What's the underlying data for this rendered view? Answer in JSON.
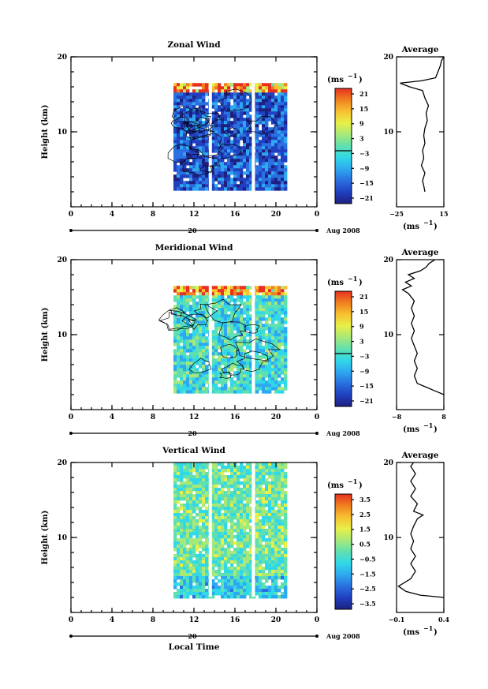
{
  "colors": {
    "scale": [
      "#1e2080",
      "#2040c0",
      "#2a70e0",
      "#2ea8f0",
      "#30d8e8",
      "#60e0b0",
      "#a8e878",
      "#e8f048",
      "#f8c030",
      "#f08020",
      "#e83020"
    ],
    "contour": "#000000",
    "axis": "#000000"
  },
  "x_axis": {
    "ticks": [
      "0",
      "4",
      "8",
      "12",
      "16",
      "20",
      "0"
    ],
    "date_label": "20",
    "month_label": "Aug 2008",
    "xlabel": "Local Time"
  },
  "chart_data": [
    {
      "type": "heatmap",
      "title": "Zonal Wind",
      "ylabel": "Height (km)",
      "xlim": [
        0,
        24
      ],
      "ylim": [
        2,
        20
      ],
      "y_ticks": [
        "10",
        "20"
      ],
      "data_start_hour": 10,
      "data_end_hour": 21,
      "gaps_hours": [
        13.6,
        17.8
      ],
      "dominant_value": -15,
      "top_value": 21,
      "colorbar": {
        "unit": "(ms",
        "unit_exp": "−1",
        "unit_close": ")",
        "ticks": [
          "21",
          "15",
          "9",
          "3",
          "−3",
          "−9",
          "−15",
          "−21"
        ],
        "zero_line": true
      },
      "profile": {
        "title": "Average",
        "xlim_labels": [
          "−25",
          "15"
        ],
        "xlim": [
          -25,
          15
        ],
        "unit": "(ms",
        "unit_exp": "−1",
        "unit_close": ")",
        "y_ticks": [
          "10",
          "20"
        ],
        "points": [
          [
            -1,
            2
          ],
          [
            -2,
            2.8
          ],
          [
            -3,
            3.5
          ],
          [
            -1,
            4.5
          ],
          [
            -4,
            5.5
          ],
          [
            -2,
            6.5
          ],
          [
            -3,
            7.5
          ],
          [
            -1,
            8.5
          ],
          [
            -2,
            9.5
          ],
          [
            -1,
            10.5
          ],
          [
            1,
            11.5
          ],
          [
            0,
            12.5
          ],
          [
            2,
            13.5
          ],
          [
            -1,
            14.5
          ],
          [
            -3,
            15.5
          ],
          [
            -14,
            16
          ],
          [
            -22,
            16.5
          ],
          [
            -4,
            16.8
          ],
          [
            8,
            17.2
          ],
          [
            10,
            18
          ],
          [
            12,
            18.8
          ],
          [
            13,
            19.5
          ],
          [
            15,
            20
          ]
        ]
      }
    },
    {
      "type": "heatmap",
      "title": "Meridional Wind",
      "ylabel": "Height (km)",
      "xlim": [
        0,
        24
      ],
      "ylim": [
        2,
        20
      ],
      "y_ticks": [
        "10",
        "20"
      ],
      "data_start_hour": 10,
      "data_end_hour": 21,
      "gaps_hours": [
        13.6,
        17.8
      ],
      "dominant_value": -3,
      "top_value": 21,
      "colorbar": {
        "unit": "(ms",
        "unit_exp": "−1",
        "unit_close": ")",
        "ticks": [
          "21",
          "15",
          "9",
          "3",
          "−3",
          "−9",
          "−15",
          "−21"
        ],
        "zero_line": true
      },
      "profile": {
        "title": "Average",
        "xlim_labels": [
          "−8",
          "8"
        ],
        "xlim": [
          -8,
          8
        ],
        "unit": "(ms",
        "unit_exp": "−1",
        "unit_close": ")",
        "y_ticks": [
          "10",
          "20"
        ],
        "points": [
          [
            8,
            2
          ],
          [
            5,
            2.5
          ],
          [
            2,
            3
          ],
          [
            -1,
            3.5
          ],
          [
            -2,
            4.5
          ],
          [
            -1,
            5.5
          ],
          [
            -2,
            6.5
          ],
          [
            -1,
            7.5
          ],
          [
            -2,
            8.5
          ],
          [
            -3,
            9.5
          ],
          [
            -2,
            10.5
          ],
          [
            -3,
            11.5
          ],
          [
            -2,
            12.5
          ],
          [
            -3,
            13.5
          ],
          [
            -2,
            14.5
          ],
          [
            -4,
            15.5
          ],
          [
            -6,
            16
          ],
          [
            -3,
            16.5
          ],
          [
            -5,
            17
          ],
          [
            -2,
            17.5
          ],
          [
            -4,
            18
          ],
          [
            0,
            18.5
          ],
          [
            2,
            19
          ],
          [
            3,
            19.5
          ],
          [
            5,
            20
          ]
        ]
      }
    },
    {
      "type": "heatmap",
      "title": "Vertical Wind",
      "ylabel": "Height (km)",
      "xlim": [
        0,
        24
      ],
      "ylim": [
        2,
        20
      ],
      "y_ticks": [
        "10",
        "20"
      ],
      "data_start_hour": 10,
      "data_end_hour": 21,
      "gaps_hours": [
        13.6,
        17.8
      ],
      "dominant_value": 0.2,
      "top_value": 0.2,
      "colorbar": {
        "unit": "(ms",
        "unit_exp": "−1",
        "unit_close": ")",
        "ticks": [
          "3.5",
          "2.5",
          "1.5",
          "0.5",
          "−0.5",
          "−1.5",
          "−2.5",
          "−3.5"
        ],
        "zero_line": false
      },
      "profile": {
        "title": "Average",
        "xlim_labels": [
          "−0.1",
          "0.4"
        ],
        "xlim": [
          -0.1,
          0.4
        ],
        "unit": "(ms",
        "unit_exp": "−1",
        "unit_close": ")",
        "y_ticks": [
          "10",
          "20"
        ],
        "points": [
          [
            0.4,
            2
          ],
          [
            0.15,
            2.3
          ],
          [
            0.0,
            2.8
          ],
          [
            -0.08,
            3.5
          ],
          [
            0.05,
            4.5
          ],
          [
            0.1,
            5.5
          ],
          [
            0.05,
            6.5
          ],
          [
            0.1,
            7.5
          ],
          [
            0.05,
            8.5
          ],
          [
            0.08,
            9.5
          ],
          [
            0.05,
            10.5
          ],
          [
            0.08,
            11.5
          ],
          [
            0.12,
            12.5
          ],
          [
            0.18,
            13
          ],
          [
            0.08,
            13.5
          ],
          [
            0.12,
            14.5
          ],
          [
            0.05,
            15.5
          ],
          [
            0.1,
            16.5
          ],
          [
            0.05,
            17.5
          ],
          [
            0.1,
            18.5
          ],
          [
            0.05,
            19.5
          ],
          [
            0.08,
            20
          ]
        ]
      }
    }
  ]
}
